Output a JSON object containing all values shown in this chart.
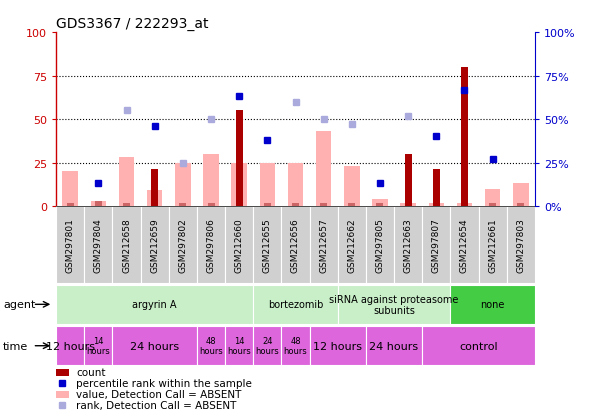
{
  "title": "GDS3367 / 222293_at",
  "samples": [
    "GSM297801",
    "GSM297804",
    "GSM212658",
    "GSM212659",
    "GSM297802",
    "GSM297806",
    "GSM212660",
    "GSM212655",
    "GSM212656",
    "GSM212657",
    "GSM212662",
    "GSM297805",
    "GSM212663",
    "GSM297807",
    "GSM212654",
    "GSM212661",
    "GSM297803"
  ],
  "count_values": [
    2,
    3,
    2,
    21,
    2,
    2,
    55,
    2,
    2,
    2,
    2,
    2,
    30,
    21,
    80,
    2,
    2
  ],
  "count_is_dark": [
    false,
    false,
    false,
    true,
    false,
    false,
    true,
    false,
    false,
    false,
    false,
    false,
    true,
    true,
    true,
    false,
    false
  ],
  "pink_values": [
    20,
    3,
    28,
    9,
    25,
    30,
    25,
    25,
    25,
    43,
    23,
    4,
    2,
    2,
    2,
    10,
    13
  ],
  "blue_square_values": [
    null,
    13,
    null,
    46,
    null,
    null,
    63,
    38,
    null,
    null,
    null,
    13,
    null,
    40,
    67,
    27,
    null
  ],
  "light_blue_square_values": [
    null,
    null,
    55,
    null,
    25,
    50,
    null,
    null,
    60,
    50,
    47,
    null,
    52,
    null,
    null,
    null,
    null
  ],
  "ylim": [
    0,
    100
  ],
  "yticks": [
    0,
    25,
    50,
    75,
    100
  ],
  "count_color_dark": "#aa0000",
  "count_color_light": "#cc6666",
  "pink_color": "#ffb0b0",
  "blue_square_color": "#0000cc",
  "light_blue_color": "#aaaadd",
  "left_axis_color": "#cc0000",
  "right_axis_color": "#0000cc",
  "agent_groups": [
    {
      "label": "argyrin A",
      "start": 0,
      "end": 7,
      "color": "#c8efc8"
    },
    {
      "label": "bortezomib",
      "start": 7,
      "end": 10,
      "color": "#c8efc8"
    },
    {
      "label": "siRNA against proteasome\nsubunits",
      "start": 10,
      "end": 14,
      "color": "#c8efc8"
    },
    {
      "label": "none",
      "start": 14,
      "end": 17,
      "color": "#44cc44"
    }
  ],
  "time_groups": [
    {
      "label": "12 hours",
      "start": 0,
      "end": 1,
      "fontsize": 8
    },
    {
      "label": "14\nhours",
      "start": 1,
      "end": 2,
      "fontsize": 6
    },
    {
      "label": "24 hours",
      "start": 2,
      "end": 5,
      "fontsize": 8
    },
    {
      "label": "48\nhours",
      "start": 5,
      "end": 6,
      "fontsize": 6
    },
    {
      "label": "14\nhours",
      "start": 6,
      "end": 7,
      "fontsize": 6
    },
    {
      "label": "24\nhours",
      "start": 7,
      "end": 8,
      "fontsize": 6
    },
    {
      "label": "48\nhours",
      "start": 8,
      "end": 9,
      "fontsize": 6
    },
    {
      "label": "12 hours",
      "start": 9,
      "end": 11,
      "fontsize": 8
    },
    {
      "label": "24 hours",
      "start": 11,
      "end": 13,
      "fontsize": 8
    },
    {
      "label": "control",
      "start": 13,
      "end": 17,
      "fontsize": 8
    }
  ],
  "time_color": "#dd66dd",
  "legend_items": [
    {
      "type": "rect",
      "color": "#aa0000",
      "label": "count"
    },
    {
      "type": "square",
      "color": "#0000cc",
      "label": "percentile rank within the sample"
    },
    {
      "type": "rect",
      "color": "#ffb0b0",
      "label": "value, Detection Call = ABSENT"
    },
    {
      "type": "square",
      "color": "#aaaadd",
      "label": "rank, Detection Call = ABSENT"
    }
  ]
}
